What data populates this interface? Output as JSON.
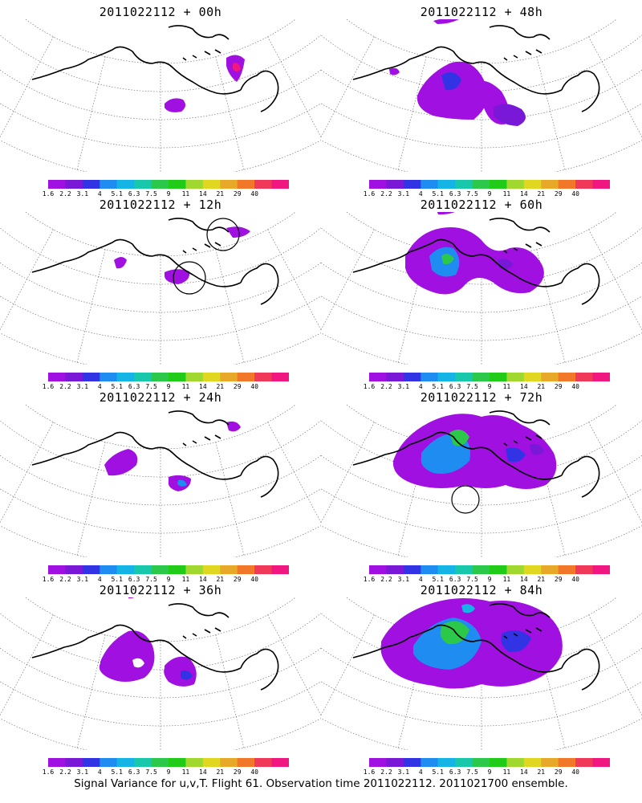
{
  "footer": "Signal Variance for u,v,T. Flight 61. Observation time 2011022112. 2011021700 ensemble.",
  "colorbar": {
    "labels": [
      "1.6",
      "2.2",
      "3.1",
      "4",
      "5.1",
      "6.3",
      "7.5",
      "9",
      "11",
      "14",
      "21",
      "29",
      "40"
    ],
    "colors": [
      "#a010e0",
      "#7a18d8",
      "#3333e6",
      "#1e8cf0",
      "#14b4e6",
      "#18c8aa",
      "#2cc84a",
      "#20cc18",
      "#a0d830",
      "#e0d820",
      "#e8a828",
      "#f07828",
      "#f03858",
      "#f01880"
    ]
  },
  "panels": [
    {
      "title": "2011022112 + 00h",
      "circles": 0
    },
    {
      "title": "2011022112 + 48h",
      "circles": 0
    },
    {
      "title": "2011022112 + 12h",
      "circles": 2
    },
    {
      "title": "2011022112 + 60h",
      "circles": 0
    },
    {
      "title": "2011022112 + 24h",
      "circles": 0
    },
    {
      "title": "2011022112 + 72h",
      "circles": 1
    },
    {
      "title": "2011022112 + 36h",
      "circles": 0
    },
    {
      "title": "2011022112 + 84h",
      "circles": 0
    }
  ]
}
